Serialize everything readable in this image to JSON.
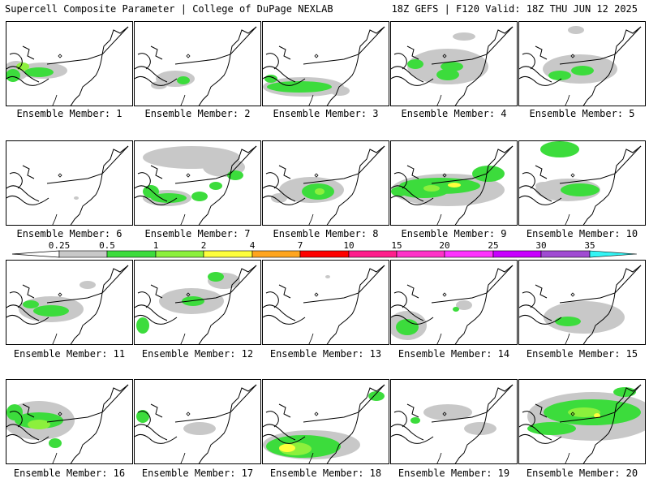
{
  "header": {
    "left": "Supercell Composite Parameter | College of DuPage NEXLAB",
    "right": "18Z GEFS | F120 Valid: 18Z THU JUN 12 2025"
  },
  "members": [
    "Ensemble Member: 1",
    "Ensemble Member: 2",
    "Ensemble Member: 3",
    "Ensemble Member: 4",
    "Ensemble Member: 5",
    "Ensemble Member: 6",
    "Ensemble Member: 7",
    "Ensemble Member: 8",
    "Ensemble Member: 9",
    "Ensemble Member: 10",
    "Ensemble Member: 11",
    "Ensemble Member: 12",
    "Ensemble Member: 13",
    "Ensemble Member: 14",
    "Ensemble Member: 15",
    "Ensemble Member: 16",
    "Ensemble Member: 17",
    "Ensemble Member: 18",
    "Ensemble Member: 19",
    "Ensemble Member: 20"
  ],
  "colorbar": {
    "labels": [
      "0.25",
      "0.5",
      "1",
      "2",
      "4",
      "7",
      "10",
      "15",
      "20",
      "25",
      "30",
      "35"
    ],
    "colors": [
      "#c8c8c8",
      "#3cdc3c",
      "#8cf03c",
      "#ffff3c",
      "#ffa51e",
      "#ff0000",
      "#ff1e8c",
      "#ff32c8",
      "#ff32ff",
      "#c800ff",
      "#a04bd2",
      "#32f5f5"
    ]
  },
  "colors": {
    "light": "#c8c8c8",
    "mid": "#3cdc3c",
    "bright": "#8cf03c",
    "yellow": "#ffff3c"
  }
}
